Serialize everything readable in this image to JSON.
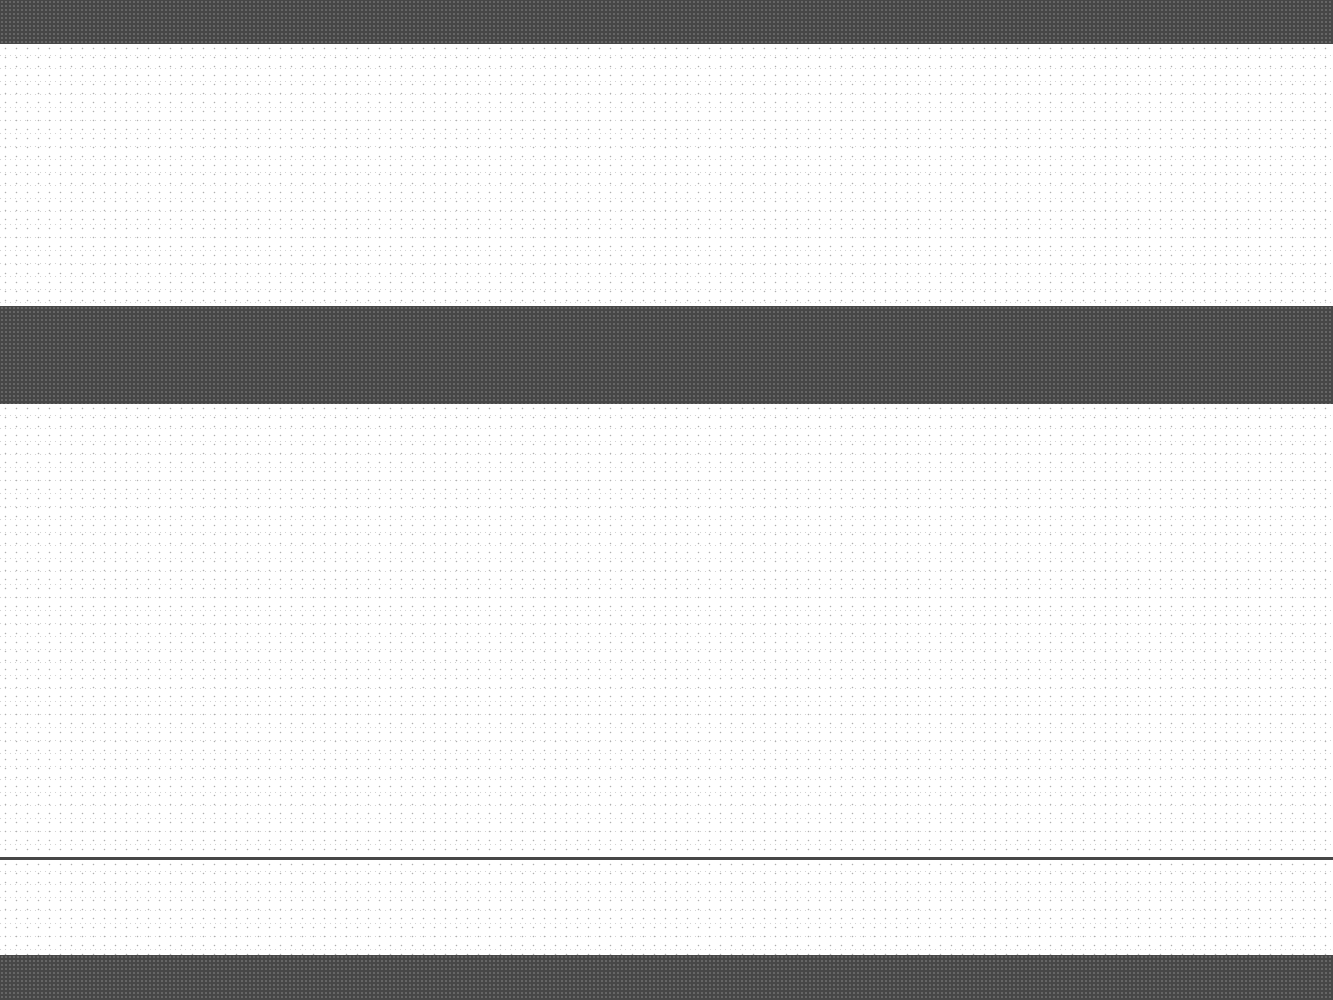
{
  "palette": {
    "dark_band": "#474747",
    "light_band": "#ffffff",
    "noise_dark": "#888888",
    "noise_light": "#b9b9b9",
    "rule": "#474747"
  },
  "bands": [
    {
      "name": "dark-band-top",
      "tone": "dark"
    },
    {
      "name": "light-band-upper",
      "tone": "light"
    },
    {
      "name": "dark-band-middle",
      "tone": "dark"
    },
    {
      "name": "light-band-lower",
      "tone": "light"
    },
    {
      "name": "light-band-bottom",
      "tone": "light"
    },
    {
      "name": "dark-band-bottom",
      "tone": "dark"
    }
  ]
}
